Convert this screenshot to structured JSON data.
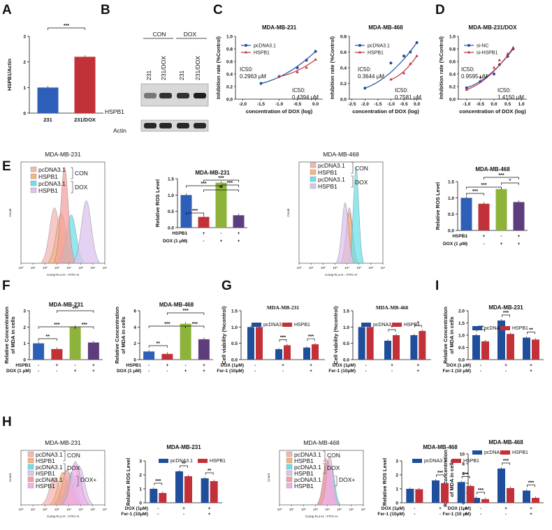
{
  "panels": {
    "A": "A",
    "B": "B",
    "C": "C",
    "D": "D",
    "E": "E",
    "F": "F",
    "G": "G",
    "H": "H",
    "I": "I"
  },
  "colors": {
    "blue": "#2e5fb8",
    "red": "#c23038",
    "green": "#8db33b",
    "purple": "#5e3d7e",
    "navy": "#1f4e9b"
  },
  "chart_data": [
    {
      "id": "A",
      "type": "bar",
      "ylabel": "HSPB1/Actin",
      "categories": [
        "231",
        "231/DOX"
      ],
      "values": [
        1.0,
        2.2
      ],
      "ylim": [
        0,
        3
      ],
      "yticks": [
        "0",
        "1",
        "2",
        "3"
      ],
      "sig": [
        "***"
      ]
    },
    {
      "id": "B",
      "type": "blot",
      "groups": [
        "CON",
        "DOX"
      ],
      "lanes": [
        "231",
        "231/DOX",
        "231",
        "231/DOX"
      ],
      "rows": [
        "HSPB1",
        "Actin"
      ]
    },
    {
      "id": "C1",
      "type": "scatter",
      "title": "MDA-MB-231",
      "xlabel": "concentration of DOX (log)",
      "ylabel": "Inhibition rate (%Control)",
      "xticks": [
        "-2.0",
        "-1.5",
        "-1.0",
        "-0.5",
        "0.0"
      ],
      "yticks": [
        "0.0",
        "0.2",
        "0.4",
        "0.6",
        "0.8",
        "1.0"
      ],
      "legend": [
        "pcDNA3.1",
        "HSPB1"
      ],
      "ic1_label": "IC50:",
      "ic1_value": "0.2963 μM",
      "ic2_label": "IC50:",
      "ic2_value": "0.4394 μM",
      "series": [
        {
          "name": "pcDNA3.1",
          "x": [
            -1.5,
            -1.0,
            -0.5,
            -0.25,
            0.0
          ],
          "y": [
            0.25,
            0.36,
            0.5,
            0.62,
            0.76
          ]
        },
        {
          "name": "HSPB1",
          "x": [
            -1.0,
            -0.5,
            -0.25,
            0.0
          ],
          "y": [
            0.36,
            0.43,
            0.5,
            0.63
          ]
        }
      ]
    },
    {
      "id": "C2",
      "type": "scatter",
      "title": "MDA-MB-468",
      "xlabel": "concentration of DOX (log)",
      "ylabel": "Inhibition rate (%Control)",
      "xticks": [
        "-2.5",
        "-2.0",
        "-1.5",
        "-1.0",
        "-0.5",
        "0.0"
      ],
      "yticks": [
        "0.0",
        "0.2",
        "0.4",
        "0.6",
        "0.8"
      ],
      "legend": [
        "pcDNA3.1",
        "HSPB1"
      ],
      "ic1_label": "IC50:",
      "ic1_value": "0.3644 μM",
      "ic2_label": "IC50:",
      "ic2_value": "0.7581 μM",
      "series": [
        {
          "name": "pcDNA3.1",
          "x": [
            -2.0,
            -1.0,
            -0.5,
            -0.25,
            0.0
          ],
          "y": [
            0.14,
            0.46,
            0.55,
            0.6,
            0.72
          ]
        },
        {
          "name": "HSPB1",
          "x": [
            -1.0,
            -0.5,
            -0.25,
            0.0
          ],
          "y": [
            0.25,
            0.33,
            0.45,
            0.55
          ]
        }
      ]
    },
    {
      "id": "D",
      "type": "scatter",
      "title": "MDA-MB-231/DOX",
      "xlabel": "concentration of DOX (log)",
      "ylabel": "Inhibition rate (%Control)",
      "xticks": [
        "-1.0",
        "-0.5",
        "0.0",
        "0.5",
        "1.0"
      ],
      "yticks": [
        "0.0",
        "0.2",
        "0.4",
        "0.6",
        "0.8",
        "1.0"
      ],
      "legend": [
        "si-NC",
        "si-HSPB1"
      ],
      "ic1_label": "IC50:",
      "ic1_value": "0.9595 μM",
      "ic2_label": "IC50:",
      "ic2_value": "1.4150 μM",
      "series": [
        {
          "name": "si-NC",
          "x": [
            -1.0,
            -0.5,
            0.0,
            0.2,
            0.5,
            0.7
          ],
          "y": [
            0.18,
            0.28,
            0.4,
            0.55,
            0.68,
            0.8
          ]
        },
        {
          "name": "si-HSPB1",
          "x": [
            -1.0,
            -0.5,
            0.0,
            0.2,
            0.5,
            0.7
          ],
          "y": [
            0.15,
            0.35,
            0.5,
            0.62,
            0.72,
            0.82
          ]
        }
      ]
    },
    {
      "id": "E1",
      "type": "histogram",
      "title": "MDA-MB-231",
      "xlabel": "Comp-FL1-H :: FITC-H",
      "ylabel": "Count",
      "legend": [
        "pcDNA3.1",
        "HSPB1",
        "pcDNA3.1",
        "HSPB1"
      ],
      "brackets": [
        "CON",
        "DOX"
      ],
      "xticks": [
        "10⁰",
        "10¹",
        "10²",
        "10³",
        "10⁴",
        "10⁵",
        "10⁶",
        "10⁷"
      ]
    },
    {
      "id": "E2",
      "type": "bar",
      "title": "MDA-MB-231",
      "ylabel": "Relative ROS Level",
      "values": [
        1.0,
        0.33,
        1.38,
        0.38
      ],
      "ylim": [
        0,
        1.5
      ],
      "yticks": [
        "0.0",
        "0.5",
        "1.0",
        "1.5"
      ],
      "rows": [
        {
          "label": "HSPB1",
          "v": [
            "-",
            "+",
            "-",
            "+"
          ]
        },
        {
          "label": "DOX (1 μM)",
          "v": [
            "-",
            "-",
            "+",
            "+"
          ]
        }
      ],
      "sig": [
        "***",
        "***",
        "**",
        "***",
        "***"
      ]
    },
    {
      "id": "E3",
      "type": "histogram",
      "title": "MDA-MB-468",
      "xlabel": "Comp-FL1-H :: FITC-H",
      "ylabel": "Count",
      "legend": [
        "pcDNA3.1",
        "HSPB1",
        "pcDNA3.1",
        "HSPB1"
      ],
      "brackets": [
        "CON",
        "DOX"
      ],
      "xticks": [
        "10⁰",
        "10¹",
        "10²",
        "10³",
        "10⁴",
        "10⁵",
        "10⁶",
        "10⁷"
      ]
    },
    {
      "id": "E4",
      "type": "bar",
      "title": "MDA-MB-468",
      "ylabel": "Relative ROS Level",
      "values": [
        1.0,
        0.82,
        1.27,
        0.87
      ],
      "ylim": [
        0,
        1.5
      ],
      "yticks": [
        "0.0",
        "0.5",
        "1.0",
        "1.5"
      ],
      "rows": [
        {
          "label": "HSPB1",
          "v": [
            "-",
            "+",
            "-",
            "+"
          ]
        },
        {
          "label": "DOX (1 μM)",
          "v": [
            "-",
            "-",
            "+",
            "+"
          ]
        }
      ],
      "sig": [
        "***",
        "***",
        "*",
        "***"
      ]
    },
    {
      "id": "F1",
      "type": "bar",
      "title": "MDA-MB-231",
      "ylabel": "Relative Concentration of MDA in cells",
      "values": [
        1.0,
        0.65,
        2.0,
        1.05
      ],
      "ylim": [
        0,
        3
      ],
      "yticks": [
        "0",
        "1",
        "2",
        "3"
      ],
      "rows": [
        {
          "label": "HSPB1",
          "v": [
            "-",
            "+",
            "-",
            "+"
          ]
        },
        {
          "label": "DOX (1 μM)",
          "v": [
            "-",
            "-",
            "+",
            "+"
          ]
        }
      ],
      "sig": [
        "**",
        "***",
        "***",
        "***"
      ]
    },
    {
      "id": "F2",
      "type": "bar",
      "title": "MDA-MB-468",
      "ylabel": "Relative Concentration of MDA in cells",
      "values": [
        1.0,
        0.7,
        4.4,
        2.5
      ],
      "ylim": [
        0,
        6
      ],
      "yticks": [
        "0",
        "2",
        "4",
        "6"
      ],
      "rows": [
        {
          "label": "HSPB1",
          "v": [
            "-",
            "+",
            "-",
            "+"
          ]
        },
        {
          "label": "DOX (1 μM)",
          "v": [
            "-",
            "-",
            "+",
            "+"
          ]
        }
      ],
      "sig": [
        "**",
        "***",
        "***",
        "***"
      ]
    },
    {
      "id": "G1",
      "type": "bar",
      "title": "MDA-MB-231",
      "ylabel": "Cell viability (%control)",
      "legend": [
        "pcDNA3.1",
        "HSPB1"
      ],
      "series": [
        {
          "name": "pcDNA3.1",
          "values": [
            1.0,
            0.32,
            0.37
          ]
        },
        {
          "name": "HSPB1",
          "values": [
            1.0,
            0.44,
            0.47
          ]
        }
      ],
      "ylim": [
        0,
        1.5
      ],
      "yticks": [
        "0.0",
        "0.5",
        "1.0",
        "1.5"
      ],
      "rows": [
        {
          "label": "DOX  (1μM)",
          "v": [
            "-",
            "+",
            "+"
          ]
        },
        {
          "label": "Fer-1  (10μM)",
          "v": [
            "-",
            "-",
            "+"
          ]
        }
      ],
      "sig": [
        "",
        "***",
        "***"
      ]
    },
    {
      "id": "G2",
      "type": "bar",
      "title": "MDA-MB-468",
      "ylabel": "Cell viability (%control)",
      "legend": [
        "pcDNA3.1",
        "HSPB1"
      ],
      "series": [
        {
          "name": "pcDNA3.1",
          "values": [
            1.0,
            0.58,
            0.75
          ]
        },
        {
          "name": "HSPB1",
          "values": [
            1.0,
            0.75,
            0.88
          ]
        }
      ],
      "ylim": [
        0,
        1.5
      ],
      "yticks": [
        "0.0",
        "0.5",
        "1.0",
        "1.5"
      ],
      "rows": [
        {
          "label": "DOX  (1μM)",
          "v": [
            "-",
            "+",
            "+"
          ]
        },
        {
          "label": "Fer-1  (10μM)",
          "v": [
            "-",
            "-",
            "+"
          ]
        }
      ],
      "sig": [
        "",
        "*",
        "*"
      ]
    },
    {
      "id": "I1",
      "type": "bar",
      "title": "MDA-MB-231",
      "ylabel": "Relative Concentration of MDA in cells",
      "legend": [
        "pcDNA3.1",
        "HSPB1"
      ],
      "series": [
        {
          "name": "pcDNA3.1",
          "values": [
            1.0,
            1.6,
            0.9
          ]
        },
        {
          "name": "HSPB1",
          "values": [
            0.75,
            1.05,
            0.82
          ]
        }
      ],
      "ylim": [
        0,
        2
      ],
      "yticks": [
        "0.0",
        "0.5",
        "1.0",
        "1.5",
        "2.0"
      ],
      "rows": [
        {
          "label": "DOX  (1 μM)",
          "v": [
            "-",
            "+",
            "+"
          ]
        },
        {
          "label": "Fer-1 (10 μM)",
          "v": [
            "-",
            "-",
            "+"
          ]
        }
      ],
      "sig": [
        "***",
        "***",
        "**"
      ]
    },
    {
      "id": "H1",
      "type": "histogram",
      "title": "MDA-MB-231",
      "xlabel": "Comp-FL1-H :: FITC-H",
      "ylabel": "Count",
      "legend": [
        "pcDNA3.1",
        "HSPB1",
        "pcDNA3.1",
        "HSPB1",
        "pcDNA3.1",
        "HSPB1"
      ],
      "brackets": [
        "CON",
        "DOX",
        "DOX+",
        "Fer-1"
      ],
      "xticks": [
        "10⁰",
        "10¹",
        "10²",
        "10³",
        "10⁴",
        "10⁵",
        "10⁶",
        "10⁷"
      ]
    },
    {
      "id": "H2",
      "type": "bar",
      "title": "MDA-MB-231",
      "ylabel": "Relative ROS Level",
      "legend": [
        "pcDNA3.1",
        "HSPB1"
      ],
      "series": [
        {
          "name": "pcDNA3.1",
          "values": [
            1.0,
            2.25,
            1.75
          ]
        },
        {
          "name": "HSPB1",
          "values": [
            0.7,
            1.9,
            1.55
          ]
        }
      ],
      "ylim": [
        0,
        3
      ],
      "yticks": [
        "0",
        "1",
        "2",
        "3"
      ],
      "rows": [
        {
          "label": "DOX  (1μM)",
          "v": [
            "-",
            "+",
            "+"
          ]
        },
        {
          "label": "Fer-1  (10μM)",
          "v": [
            "-",
            "-",
            "+"
          ]
        }
      ],
      "sig": [
        "***",
        "**",
        "**"
      ]
    },
    {
      "id": "H3",
      "type": "histogram",
      "title": "MDA-MB-468",
      "xlabel": "Comp-FL1-H :: FITC-H",
      "ylabel": "Count",
      "legend": [
        "pcDNA3.1",
        "HSPB1",
        "pcDNA3.1",
        "HSPB1",
        "pcDNA3.1",
        "HSPB1"
      ],
      "brackets": [
        "CON",
        "DOX",
        "DOX+",
        "Fer-1"
      ],
      "xticks": [
        "10⁰",
        "10¹",
        "10²",
        "10³",
        "10⁴",
        "10⁵",
        "10⁶",
        "10⁷"
      ]
    },
    {
      "id": "H4",
      "type": "bar",
      "title": "MDA-MB-468",
      "ylabel": "Relative ROS Level",
      "legend": [
        "pcDNA3.1",
        "HSPB1"
      ],
      "series": [
        {
          "name": "pcDNA3.1",
          "values": [
            1.0,
            1.6,
            1.48
          ]
        },
        {
          "name": "HSPB1",
          "values": [
            0.97,
            1.4,
            1.2
          ]
        }
      ],
      "ylim": [
        0,
        3
      ],
      "yticks": [
        "0",
        "1",
        "2",
        "3"
      ],
      "rows": [
        {
          "label": "DOX  (1μM)",
          "v": [
            "-",
            "+",
            "+"
          ]
        },
        {
          "label": "Fer-1  (10μM)",
          "v": [
            "-",
            "-",
            "+"
          ]
        }
      ],
      "sig": [
        "",
        "***",
        "***"
      ]
    },
    {
      "id": "I2",
      "type": "bar",
      "title": "MDA-MB-468",
      "ylabel": "Relative Concentration of MDA in cells",
      "legend": [
        "pcDNA3.1",
        "HSPB1"
      ],
      "series": [
        {
          "name": "pcDNA3.1",
          "values": [
            1.0,
            7.0,
            2.5
          ]
        },
        {
          "name": "HSPB1",
          "values": [
            0.75,
            3.0,
            1.0
          ]
        }
      ],
      "ylim": [
        0,
        10
      ],
      "yticks": [
        "0",
        "2",
        "4",
        "6",
        "8",
        "10"
      ],
      "rows": [
        {
          "label": "DOX (1μM)",
          "v": [
            "-",
            "+",
            "+"
          ]
        },
        {
          "label": "Fer-1 (10 μM)",
          "v": [
            "-",
            "-",
            "+"
          ]
        }
      ],
      "sig": [
        "***",
        "***",
        "***"
      ]
    }
  ]
}
